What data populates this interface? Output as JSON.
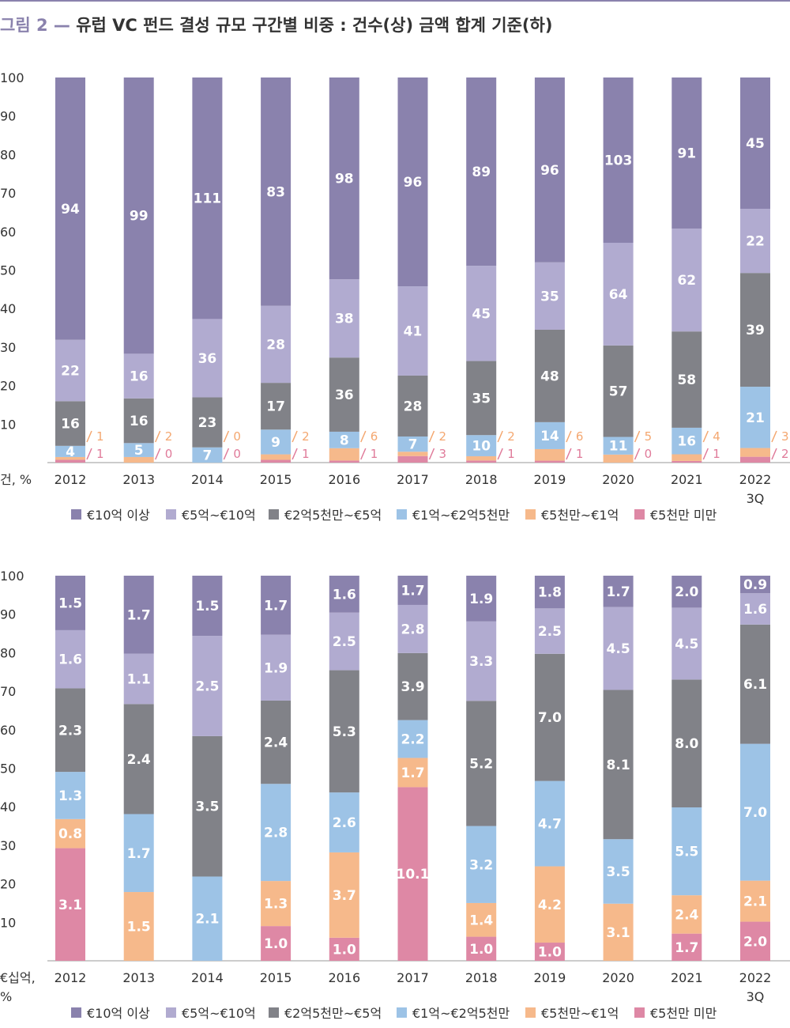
{
  "figure": {
    "number": "그림 2",
    "dash": "—",
    "title": "유럽 VC 펀드 결성 규모 구간별 비중 : 건수(상) 금액 합계 기준(하)"
  },
  "colors": {
    "€10억 이상": "#8a82ad",
    "€5억~€10억": "#b1abd0",
    "€2억5천만~€5억": "#818288",
    "€1억~€2억5천만": "#9dc3e6",
    "€5천만~€1억": "#f6b98b",
    "€5천만 미만": "#de88a5",
    "small_label_upper": "#f4a770",
    "small_label_lower": "#e07b9a",
    "axis_text": "#333333"
  },
  "chart_data": [
    {
      "type": "bar",
      "stacked": true,
      "normalized": true,
      "unit_label": "건, %",
      "categories": [
        "2012",
        "2013",
        "2014",
        "2015",
        "2016",
        "2017",
        "2018",
        "2019",
        "2020",
        "2021",
        "2022 3Q"
      ],
      "ylim": [
        0,
        100
      ],
      "yticks": [
        10,
        20,
        30,
        40,
        50,
        60,
        70,
        80,
        90,
        100
      ],
      "legend_position": "bottom",
      "series": [
        {
          "name": "€5천만 미만",
          "values": [
            1,
            0,
            0,
            1,
            1,
            3,
            1,
            1,
            0,
            1,
            2
          ]
        },
        {
          "name": "€5천만~€1억",
          "values": [
            1,
            2,
            0,
            2,
            6,
            2,
            2,
            6,
            5,
            4,
            3
          ]
        },
        {
          "name": "€1억~€2억5천만",
          "values": [
            4,
            5,
            7,
            9,
            8,
            7,
            10,
            14,
            11,
            16,
            21
          ]
        },
        {
          "name": "€2억5천만~€5억",
          "values": [
            16,
            16,
            23,
            17,
            36,
            28,
            35,
            48,
            57,
            58,
            39
          ]
        },
        {
          "name": "€5억~€10억",
          "values": [
            22,
            16,
            36,
            28,
            38,
            41,
            45,
            35,
            64,
            62,
            22
          ]
        },
        {
          "name": "€10억 이상",
          "values": [
            94,
            99,
            111,
            83,
            98,
            96,
            89,
            96,
            103,
            91,
            45
          ]
        }
      ]
    },
    {
      "type": "bar",
      "stacked": true,
      "normalized": true,
      "unit_label": "€십억, %",
      "categories": [
        "2012",
        "2013",
        "2014",
        "2015",
        "2016",
        "2017",
        "2018",
        "2019",
        "2020",
        "2021",
        "2022 3Q"
      ],
      "ylim": [
        0,
        100
      ],
      "yticks": [
        10,
        20,
        30,
        40,
        50,
        60,
        70,
        80,
        90,
        100
      ],
      "legend_position": "bottom",
      "series": [
        {
          "name": "€5천만 미만",
          "values": [
            3.1,
            null,
            null,
            1.0,
            1.0,
            10.1,
            1.0,
            1.0,
            null,
            1.7,
            2.0
          ]
        },
        {
          "name": "€5천만~€1억",
          "values": [
            0.8,
            1.5,
            null,
            1.3,
            3.7,
            1.7,
            1.4,
            4.2,
            3.1,
            2.4,
            2.1
          ]
        },
        {
          "name": "€1억~€2억5천만",
          "values": [
            1.3,
            1.7,
            2.1,
            2.8,
            2.6,
            2.2,
            3.2,
            4.7,
            3.5,
            5.5,
            7.0
          ]
        },
        {
          "name": "€2억5천만~€5억",
          "values": [
            2.3,
            2.4,
            3.5,
            2.4,
            5.3,
            3.9,
            5.2,
            7.0,
            8.1,
            8.0,
            6.1
          ]
        },
        {
          "name": "€5억~€10억",
          "values": [
            1.6,
            1.1,
            2.5,
            1.9,
            2.5,
            2.8,
            3.3,
            2.5,
            4.5,
            4.5,
            1.6
          ]
        },
        {
          "name": "€10억 이상",
          "values": [
            1.5,
            1.7,
            1.5,
            1.7,
            1.6,
            1.7,
            1.9,
            1.8,
            1.7,
            2.0,
            0.9
          ]
        }
      ]
    }
  ]
}
